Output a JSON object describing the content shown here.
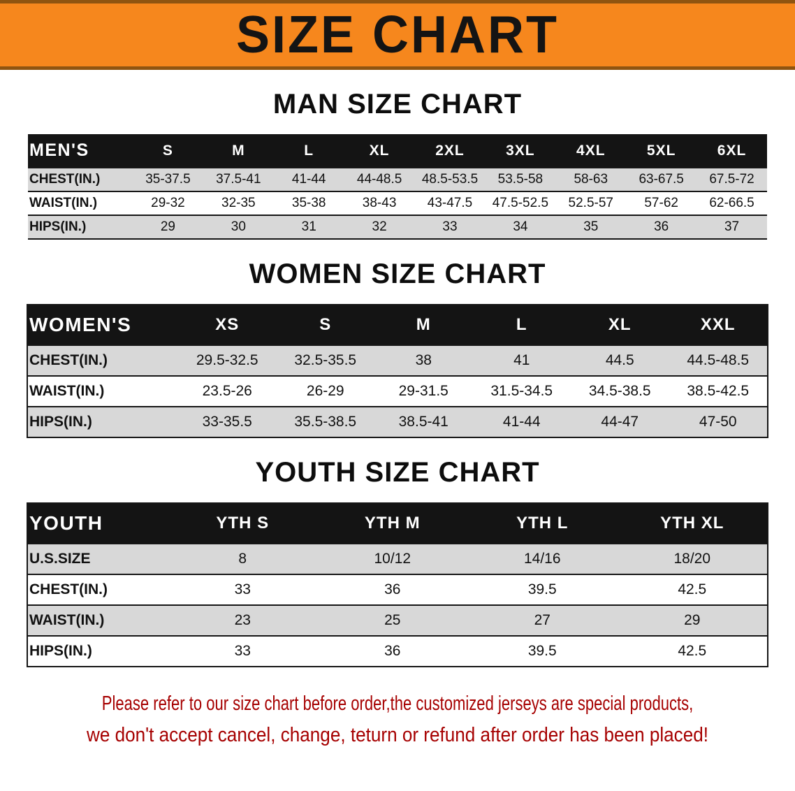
{
  "banner": {
    "title": "SIZE CHART"
  },
  "colors": {
    "banner_orange": "#F6871D",
    "banner_edge": "#8F5410",
    "header_black": "#141414",
    "stripe_gray": "#D8D8D8",
    "footer_red": "#A60000"
  },
  "chart_data": [
    {
      "type": "table",
      "title": "MAN SIZE CHART",
      "columns": [
        "MEN'S",
        "S",
        "M",
        "L",
        "XL",
        "2XL",
        "3XL",
        "4XL",
        "5XL",
        "6XL"
      ],
      "rows": [
        [
          "CHEST(IN.)",
          "35-37.5",
          "37.5-41",
          "41-44",
          "44-48.5",
          "48.5-53.5",
          "53.5-58",
          "58-63",
          "63-67.5",
          "67.5-72"
        ],
        [
          "WAIST(IN.)",
          "29-32",
          "32-35",
          "35-38",
          "38-43",
          "43-47.5",
          "47.5-52.5",
          "52.5-57",
          "57-62",
          "62-66.5"
        ],
        [
          "HIPS(IN.)",
          "29",
          "30",
          "31",
          "32",
          "33",
          "34",
          "35",
          "36",
          "37"
        ]
      ]
    },
    {
      "type": "table",
      "title": "WOMEN SIZE CHART",
      "columns": [
        "WOMEN'S",
        "XS",
        "S",
        "M",
        "L",
        "XL",
        "XXL"
      ],
      "rows": [
        [
          "CHEST(IN.)",
          "29.5-32.5",
          "32.5-35.5",
          "38",
          "41",
          "44.5",
          "44.5-48.5"
        ],
        [
          "WAIST(IN.)",
          "23.5-26",
          "26-29",
          "29-31.5",
          "31.5-34.5",
          "34.5-38.5",
          "38.5-42.5"
        ],
        [
          "HIPS(IN.)",
          "33-35.5",
          "35.5-38.5",
          "38.5-41",
          "41-44",
          "44-47",
          "47-50"
        ]
      ]
    },
    {
      "type": "table",
      "title": "YOUTH SIZE CHART",
      "columns": [
        "YOUTH",
        "YTH S",
        "YTH M",
        "YTH L",
        "YTH XL"
      ],
      "rows": [
        [
          "U.S.SIZE",
          "8",
          "10/12",
          "14/16",
          "18/20"
        ],
        [
          "CHEST(IN.)",
          "33",
          "36",
          "39.5",
          "42.5"
        ],
        [
          "WAIST(IN.)",
          "23",
          "25",
          "27",
          "29"
        ],
        [
          "HIPS(IN.)",
          "33",
          "36",
          "39.5",
          "42.5"
        ]
      ]
    }
  ],
  "footer": {
    "lines": [
      "Please refer to our size chart before order,the customized jerseys are special products,",
      "we don't accept cancel, change, teturn or refund after order has been placed!"
    ]
  }
}
